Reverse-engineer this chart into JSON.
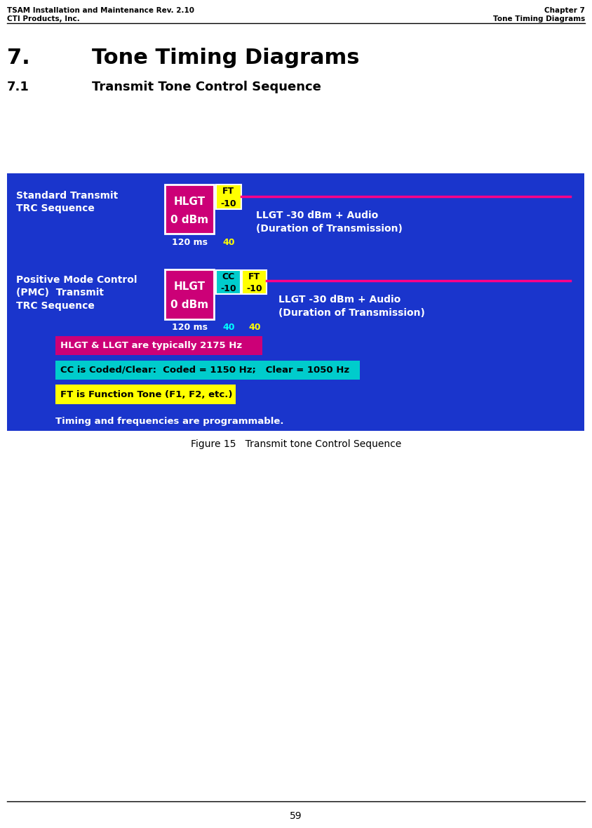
{
  "header_left_line1": "TSAM Installation and Maintenance Rev. 2.10",
  "header_left_line2": "CTI Products, Inc.",
  "header_right_line1": "Chapter 7",
  "header_right_line2": "Tone Timing Diagrams",
  "chapter_num": "7.",
  "chapter_title": "Tone Timing Diagrams",
  "section_num": "7.1",
  "section_title": "Transmit Tone Control Sequence",
  "figure_caption": "Figure 15   Transmit tone Control Sequence",
  "page_num": "59",
  "diagram_bg": "#1a35cc",
  "seq1_label_line1": "Standard Transmit",
  "seq1_label_line2": "TRC Sequence",
  "seq2_label_line1": "Positive Mode Control",
  "seq2_label_line2": "(PMC)  Transmit",
  "seq2_label_line3": "TRC Sequence",
  "hlgt_color": "#cc0077",
  "hlgt_text_line1": "HLGT",
  "hlgt_text_line2": "0 dBm",
  "ft_color": "#ffff00",
  "ft_text_line1": "FT",
  "ft_text_line2": "-10",
  "cc_color": "#00cccc",
  "cc_text_line1": "CC",
  "cc_text_line2": "-10",
  "ft2_color": "#ffff00",
  "ft2_text_line1": "FT",
  "ft2_text_line2": "-10",
  "llgt_line_color": "#ff0088",
  "llgt_text1": "LLGT -30 dBm + Audio",
  "llgt_text2": "(Duration of Transmission)",
  "timing_120ms": "120 ms",
  "timing_40_yellow": "40",
  "timing_40_cyan": "40",
  "timing_40_yellow2": "40",
  "note1_bg": "#cc0077",
  "note1_text": "HLGT & LLGT are typically 2175 Hz",
  "note2_bg": "#00cccc",
  "note2_text": "CC is Coded/Clear:  Coded = 1150 Hz;   Clear = 1050 Hz",
  "note3_bg": "#ffff00",
  "note3_text": "FT is Function Tone (F1, F2, etc.)",
  "note4_text": "Timing and frequencies are programmable.",
  "white": "#ffffff",
  "black": "#000000",
  "yellow": "#ffff00",
  "cyan": "#00ffff"
}
